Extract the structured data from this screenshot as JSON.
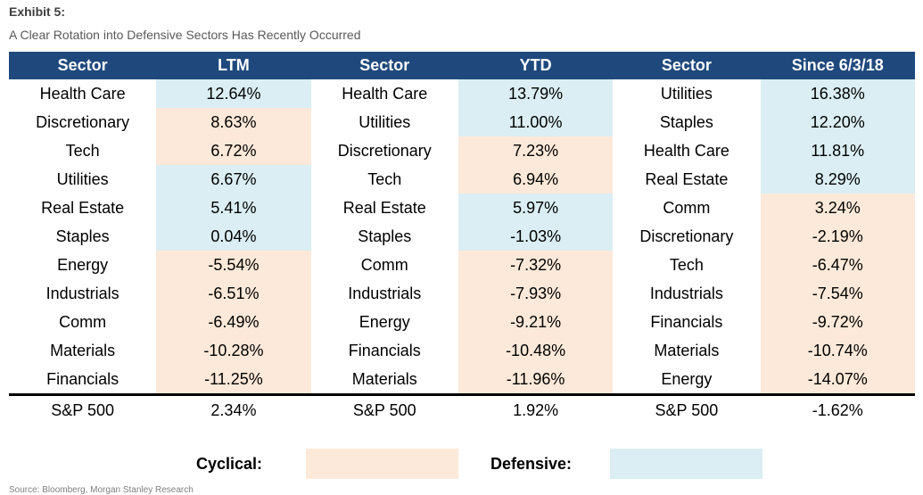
{
  "exhibit_label": "Exhibit 5:",
  "subtitle": "A Clear Rotation into Defensive Sectors Has Recently Occurred",
  "colors": {
    "header": "#1f497d",
    "cyclical": "#fde9d9",
    "defensive": "#daeef3"
  },
  "legend": {
    "cyclical": "Cyclical:",
    "defensive": "Defensive:"
  },
  "footnote": "Source: Bloomberg, Morgan Stanley Research",
  "chart_data": {
    "type": "table",
    "title": "A Clear Rotation into Defensive Sectors Has Recently Occurred",
    "headers": [
      "Sector",
      "LTM",
      "Sector",
      "YTD",
      "Sector",
      "Since 6/3/18"
    ],
    "groups": [
      {
        "period": "LTM",
        "rows": [
          {
            "sector": "Health Care",
            "value": "12.64%",
            "type": "defensive"
          },
          {
            "sector": "Discretionary",
            "value": "8.63%",
            "type": "cyclical"
          },
          {
            "sector": "Tech",
            "value": "6.72%",
            "type": "cyclical"
          },
          {
            "sector": "Utilities",
            "value": "6.67%",
            "type": "defensive"
          },
          {
            "sector": "Real Estate",
            "value": "5.41%",
            "type": "defensive"
          },
          {
            "sector": "Staples",
            "value": "0.04%",
            "type": "defensive"
          },
          {
            "sector": "Energy",
            "value": "-5.54%",
            "type": "cyclical"
          },
          {
            "sector": "Industrials",
            "value": "-6.51%",
            "type": "cyclical"
          },
          {
            "sector": "Comm",
            "value": "-6.49%",
            "type": "cyclical"
          },
          {
            "sector": "Materials",
            "value": "-10.28%",
            "type": "cyclical"
          },
          {
            "sector": "Financials",
            "value": "-11.25%",
            "type": "cyclical"
          }
        ],
        "total": {
          "sector": "S&P 500",
          "value": "2.34%"
        }
      },
      {
        "period": "YTD",
        "rows": [
          {
            "sector": "Health Care",
            "value": "13.79%",
            "type": "defensive"
          },
          {
            "sector": "Utilities",
            "value": "11.00%",
            "type": "defensive"
          },
          {
            "sector": "Discretionary",
            "value": "7.23%",
            "type": "cyclical"
          },
          {
            "sector": "Tech",
            "value": "6.94%",
            "type": "cyclical"
          },
          {
            "sector": "Real Estate",
            "value": "5.97%",
            "type": "defensive"
          },
          {
            "sector": "Staples",
            "value": "-1.03%",
            "type": "defensive"
          },
          {
            "sector": "Comm",
            "value": "-7.32%",
            "type": "cyclical"
          },
          {
            "sector": "Industrials",
            "value": "-7.93%",
            "type": "cyclical"
          },
          {
            "sector": "Energy",
            "value": "-9.21%",
            "type": "cyclical"
          },
          {
            "sector": "Financials",
            "value": "-10.48%",
            "type": "cyclical"
          },
          {
            "sector": "Materials",
            "value": "-11.96%",
            "type": "cyclical"
          }
        ],
        "total": {
          "sector": "S&P 500",
          "value": "1.92%"
        }
      },
      {
        "period": "Since 6/3/18",
        "rows": [
          {
            "sector": "Utilities",
            "value": "16.38%",
            "type": "defensive"
          },
          {
            "sector": "Staples",
            "value": "12.20%",
            "type": "defensive"
          },
          {
            "sector": "Health Care",
            "value": "11.81%",
            "type": "defensive"
          },
          {
            "sector": "Real Estate",
            "value": "8.29%",
            "type": "defensive"
          },
          {
            "sector": "Comm",
            "value": "3.24%",
            "type": "cyclical"
          },
          {
            "sector": "Discretionary",
            "value": "-2.19%",
            "type": "cyclical"
          },
          {
            "sector": "Tech",
            "value": "-6.47%",
            "type": "cyclical"
          },
          {
            "sector": "Industrials",
            "value": "-7.54%",
            "type": "cyclical"
          },
          {
            "sector": "Financials",
            "value": "-9.72%",
            "type": "cyclical"
          },
          {
            "sector": "Materials",
            "value": "-10.74%",
            "type": "cyclical"
          },
          {
            "sector": "Energy",
            "value": "-14.07%",
            "type": "cyclical"
          }
        ],
        "total": {
          "sector": "S&P 500",
          "value": "-1.62%"
        }
      }
    ]
  }
}
